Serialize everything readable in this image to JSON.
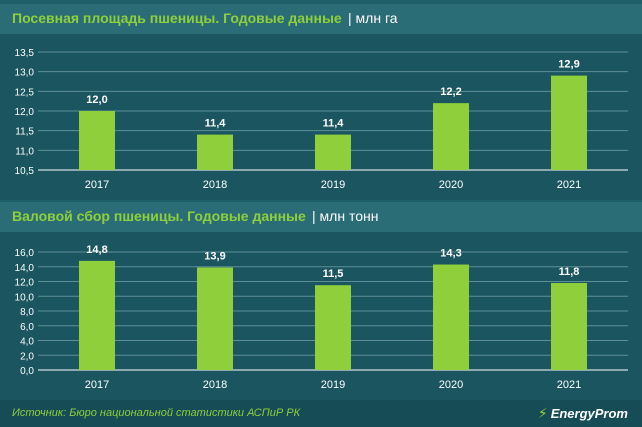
{
  "chart_data": [
    {
      "type": "bar",
      "title": "Посевная площадь пшеницы. Годовые данные",
      "unit": "млн га",
      "categories": [
        "2017",
        "2018",
        "2019",
        "2020",
        "2021"
      ],
      "values": [
        12.0,
        11.4,
        11.4,
        12.2,
        12.9
      ],
      "value_labels": [
        "12,0",
        "11,4",
        "11,4",
        "12,2",
        "12,9"
      ],
      "ylim": [
        10.5,
        13.5
      ],
      "yticks": [
        10.5,
        11.0,
        11.5,
        12.0,
        12.5,
        13.0,
        13.5
      ],
      "ytick_labels": [
        "10,5",
        "11,0",
        "11,5",
        "12,0",
        "12,5",
        "13,0",
        "13,5"
      ],
      "grid": true
    },
    {
      "type": "bar",
      "title": "Валовой сбор пшеницы. Годовые данные",
      "unit": "млн тонн",
      "categories": [
        "2017",
        "2018",
        "2019",
        "2020",
        "2021"
      ],
      "values": [
        14.8,
        13.9,
        11.5,
        14.3,
        11.8
      ],
      "value_labels": [
        "14,8",
        "13,9",
        "11,5",
        "14,3",
        "11,8"
      ],
      "ylim": [
        0,
        16
      ],
      "yticks": [
        0,
        2,
        4,
        6,
        8,
        10,
        12,
        14,
        16
      ],
      "ytick_labels": [
        "0,0",
        "2,0",
        "4,0",
        "6,0",
        "8,0",
        "10,0",
        "12,0",
        "14,0",
        "16,0"
      ],
      "grid": true
    }
  ],
  "colors": {
    "bar": "#8fcf3c",
    "title": "#8fcf3c",
    "text": "#ffffff",
    "grid": "#5f8f96"
  },
  "footer": {
    "source": "Источник: Бюро национальной статистики АСПиР РК",
    "logo": "EnergyProm",
    "logo_icon": "lightning-bolt-icon"
  }
}
